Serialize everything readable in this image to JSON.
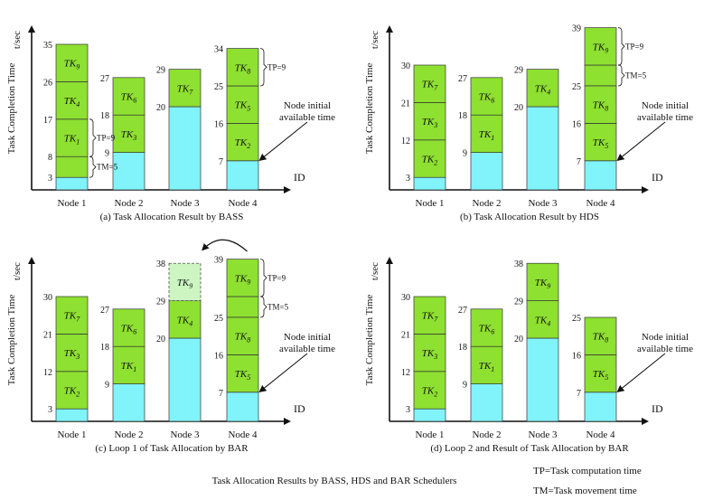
{
  "figure_title": "Task Allocation Results by BASS, HDS and BAR Schedulers",
  "legend_notes": [
    "TP=Task computation time",
    "TM=Task movement time"
  ],
  "colors": {
    "initial": "#80f3fb",
    "task": "#8ee031",
    "ghost": "#ccf5c2",
    "stroke": "#333333"
  },
  "chart_data": [
    {
      "type": "bar",
      "stacked": true,
      "title": "(a) Task Allocation Result by BASS",
      "xlabel": "ID",
      "ylabel": "Task Completion Time",
      "yunit": "t/sec",
      "categories": [
        "Node 1",
        "Node 2",
        "Node 3",
        "Node 4"
      ],
      "ylim": [
        0,
        40
      ],
      "nodes": [
        {
          "initial": 3,
          "segments": [
            {
              "label": "TK",
              "sub": "1",
              "from": 8,
              "to": 17,
              "tick": 8
            },
            {
              "label": "TK",
              "sub": "4",
              "from": 17,
              "to": 26,
              "tick": 17
            },
            {
              "label": "TK",
              "sub": "9",
              "from": 26,
              "to": 35,
              "tick": 26
            }
          ],
          "top": 35,
          "ticks": [
            3,
            8,
            17,
            26,
            35
          ],
          "gap_from": 3,
          "gap_to": 8
        },
        {
          "initial": 9,
          "segments": [
            {
              "label": "TK",
              "sub": "3",
              "from": 9,
              "to": 18,
              "tick": 9
            },
            {
              "label": "TK",
              "sub": "6",
              "from": 18,
              "to": 27,
              "tick": 18
            }
          ],
          "top": 27,
          "ticks": [
            9,
            18,
            27
          ]
        },
        {
          "initial": 20,
          "segments": [
            {
              "label": "TK",
              "sub": "7",
              "from": 20,
              "to": 29,
              "tick": 20
            }
          ],
          "top": 29,
          "ticks": [
            20,
            29
          ]
        },
        {
          "initial": 7,
          "segments": [
            {
              "label": "TK",
              "sub": "2",
              "from": 7,
              "to": 16,
              "tick": 7
            },
            {
              "label": "TK",
              "sub": "5",
              "from": 16,
              "to": 25,
              "tick": 16
            },
            {
              "label": "TK",
              "sub": "8",
              "from": 25,
              "to": 34,
              "tick": 25
            }
          ],
          "top": 34,
          "ticks": [
            7,
            16,
            25,
            34
          ]
        }
      ],
      "annotations": [
        {
          "text": "TP=9",
          "node": 0,
          "from": 8,
          "to": 17
        },
        {
          "text": "TM=5",
          "node": 0,
          "from": 3,
          "to": 8
        },
        {
          "text": "TP=9",
          "node": 3,
          "from": 25,
          "to": 34
        }
      ],
      "arrow_label": [
        "Node initial",
        "available time"
      ]
    },
    {
      "type": "bar",
      "stacked": true,
      "title": "(b) Task Allocation Result by HDS",
      "xlabel": "ID",
      "ylabel": "Task Completion Time",
      "yunit": "t/sec",
      "categories": [
        "Node 1",
        "Node 2",
        "Node 3",
        "Node 4"
      ],
      "ylim": [
        0,
        40
      ],
      "nodes": [
        {
          "initial": 3,
          "segments": [
            {
              "label": "TK",
              "sub": "2",
              "from": 3,
              "to": 12
            },
            {
              "label": "TK",
              "sub": "3",
              "from": 12,
              "to": 21
            },
            {
              "label": "TK",
              "sub": "7",
              "from": 21,
              "to": 30
            }
          ],
          "top": 30,
          "ticks": [
            3,
            12,
            21,
            30
          ]
        },
        {
          "initial": 9,
          "segments": [
            {
              "label": "TK",
              "sub": "1",
              "from": 9,
              "to": 18
            },
            {
              "label": "TK",
              "sub": "6",
              "from": 18,
              "to": 27
            }
          ],
          "top": 27,
          "ticks": [
            9,
            18,
            27
          ]
        },
        {
          "initial": 20,
          "segments": [
            {
              "label": "TK",
              "sub": "4",
              "from": 20,
              "to": 29
            }
          ],
          "top": 29,
          "ticks": [
            20,
            29
          ]
        },
        {
          "initial": 7,
          "segments": [
            {
              "label": "TK",
              "sub": "5",
              "from": 7,
              "to": 16
            },
            {
              "label": "TK",
              "sub": "8",
              "from": 16,
              "to": 25
            },
            {
              "label": "TK",
              "sub": "9",
              "from": 30,
              "to": 39
            }
          ],
          "top": 39,
          "ticks": [
            7,
            16,
            25,
            39
          ],
          "gap_from": 25,
          "gap_to": 30
        }
      ],
      "annotations": [
        {
          "text": "TP=9",
          "node": 3,
          "from": 30,
          "to": 39
        },
        {
          "text": "TM=5",
          "node": 3,
          "from": 25,
          "to": 30
        }
      ],
      "arrow_label": [
        "Node initial",
        "available time"
      ]
    },
    {
      "type": "bar",
      "stacked": true,
      "title": "(c) Loop 1 of Task Allocation by BAR",
      "xlabel": "ID",
      "ylabel": "Task Completion Time",
      "yunit": "t/sec",
      "categories": [
        "Node 1",
        "Node 2",
        "Node 3",
        "Node 4"
      ],
      "ylim": [
        0,
        40
      ],
      "nodes": [
        {
          "initial": 3,
          "segments": [
            {
              "label": "TK",
              "sub": "2",
              "from": 3,
              "to": 12
            },
            {
              "label": "TK",
              "sub": "3",
              "from": 12,
              "to": 21
            },
            {
              "label": "TK",
              "sub": "7",
              "from": 21,
              "to": 30
            }
          ],
          "top": 30,
          "ticks": [
            3,
            12,
            21,
            30
          ]
        },
        {
          "initial": 9,
          "segments": [
            {
              "label": "TK",
              "sub": "1",
              "from": 9,
              "to": 18
            },
            {
              "label": "TK",
              "sub": "6",
              "from": 18,
              "to": 27
            }
          ],
          "top": 27,
          "ticks": [
            9,
            18,
            27
          ]
        },
        {
          "initial": 20,
          "segments": [
            {
              "label": "TK",
              "sub": "4",
              "from": 20,
              "to": 29
            },
            {
              "label": "TK",
              "sub": "9",
              "from": 29,
              "to": 38,
              "ghost": true
            }
          ],
          "top": 38,
          "ticks": [
            20,
            29,
            38
          ]
        },
        {
          "initial": 7,
          "segments": [
            {
              "label": "TK",
              "sub": "5",
              "from": 7,
              "to": 16
            },
            {
              "label": "TK",
              "sub": "8",
              "from": 16,
              "to": 25
            },
            {
              "label": "TK",
              "sub": "9",
              "from": 30,
              "to": 39
            }
          ],
          "top": 39,
          "ticks": [
            7,
            16,
            25,
            39
          ],
          "gap_from": 25,
          "gap_to": 30
        }
      ],
      "annotations": [
        {
          "text": "TP=9",
          "node": 3,
          "from": 30,
          "to": 39
        },
        {
          "text": "TM=5",
          "node": 3,
          "from": 25,
          "to": 30
        }
      ],
      "move_arrow": {
        "from_node": 3,
        "to_node": 2
      },
      "arrow_label": [
        "Node initial",
        "available time"
      ]
    },
    {
      "type": "bar",
      "stacked": true,
      "title": "(d) Loop 2 and Result of Task Allocation by BAR",
      "xlabel": "ID",
      "ylabel": "Task Completion Time",
      "yunit": "t/sec",
      "categories": [
        "Node 1",
        "Node 2",
        "Node 3",
        "Node 4"
      ],
      "ylim": [
        0,
        40
      ],
      "nodes": [
        {
          "initial": 3,
          "segments": [
            {
              "label": "TK",
              "sub": "2",
              "from": 3,
              "to": 12
            },
            {
              "label": "TK",
              "sub": "3",
              "from": 12,
              "to": 21
            },
            {
              "label": "TK",
              "sub": "7",
              "from": 21,
              "to": 30
            }
          ],
          "top": 30,
          "ticks": [
            3,
            12,
            21,
            30
          ]
        },
        {
          "initial": 9,
          "segments": [
            {
              "label": "TK",
              "sub": "1",
              "from": 9,
              "to": 18
            },
            {
              "label": "TK",
              "sub": "6",
              "from": 18,
              "to": 27
            }
          ],
          "top": 27,
          "ticks": [
            9,
            18,
            27
          ]
        },
        {
          "initial": 20,
          "segments": [
            {
              "label": "TK",
              "sub": "4",
              "from": 20,
              "to": 29
            },
            {
              "label": "TK",
              "sub": "9",
              "from": 29,
              "to": 38
            }
          ],
          "top": 38,
          "ticks": [
            20,
            29,
            38
          ]
        },
        {
          "initial": 7,
          "segments": [
            {
              "label": "TK",
              "sub": "5",
              "from": 7,
              "to": 16
            },
            {
              "label": "TK",
              "sub": "8",
              "from": 16,
              "to": 25
            }
          ],
          "top": 25,
          "ticks": [
            7,
            16,
            25
          ]
        }
      ],
      "annotations": [],
      "arrow_label": [
        "Node initial",
        "available time"
      ]
    }
  ]
}
